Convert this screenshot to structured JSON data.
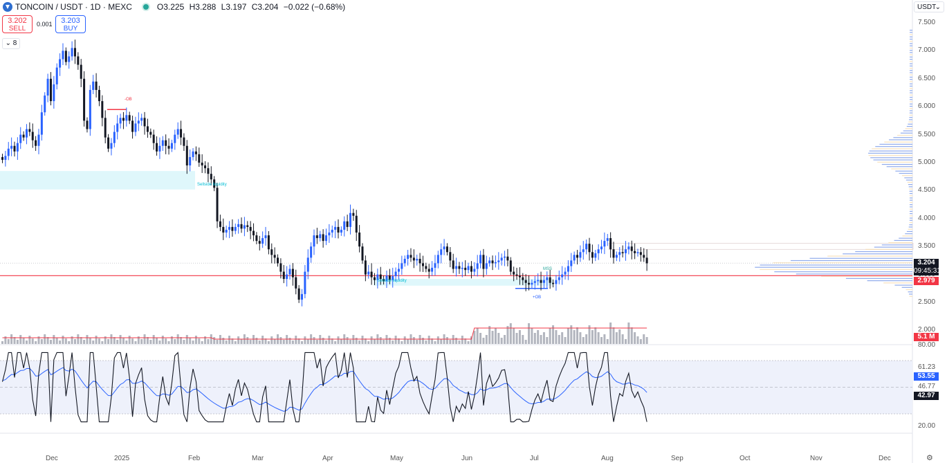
{
  "header": {
    "symbol": "TONCOIN / USDT · 1D · MEXC",
    "open": "O3.225",
    "high": "H3.288",
    "low": "L3.197",
    "close": "C3.204",
    "change": "−0.022 (−0.68%)"
  },
  "trade": {
    "sell_price": "3.202",
    "sell_label": "SELL",
    "spread": "0.001",
    "buy_price": "3.203",
    "buy_label": "BUY"
  },
  "indicators_count": "8",
  "currency": "USDT",
  "colors": {
    "up": "#2962ff",
    "down": "#131722",
    "accent": "#f23645",
    "ema": "#2962ff",
    "rsi": "#131722"
  },
  "price_labels": {
    "last_price": "3.204",
    "countdown": "09:45:31",
    "level": "2.979",
    "volume": "5.1 M",
    "rsi_ma": "53.55",
    "rsi": "42.97"
  },
  "annotations": {
    "ob_bear": "-OB",
    "sell_liquidity": "Sellside liquidity",
    "sell_liquidity_2": "Sellside liquidity",
    "ob_bull": "+OB",
    "mss": "MSS"
  },
  "chart_data": {
    "type": "candlestick",
    "symbol": "TONCOIN / USDT",
    "interval": "1D",
    "exchange": "MEXC",
    "price_axis": {
      "ticks": [
        "7.500",
        "7.000",
        "6.500",
        "6.000",
        "5.500",
        "5.000",
        "4.500",
        "4.000",
        "3.500",
        "3.000",
        "2.500",
        "2.000"
      ],
      "range": [
        1.9,
        7.75
      ]
    },
    "time_axis": {
      "ticks": [
        "Dec",
        "2025",
        "Feb",
        "Mar",
        "Apr",
        "May",
        "Jun",
        "Jul",
        "Aug",
        "Sep",
        "Oct",
        "Nov",
        "Dec"
      ]
    },
    "closes": [
      5.05,
      5.12,
      5.25,
      5.3,
      5.2,
      5.35,
      5.5,
      5.45,
      5.6,
      5.55,
      5.4,
      5.3,
      5.5,
      5.9,
      6.2,
      6.5,
      6.1,
      6.4,
      6.7,
      6.85,
      7.0,
      6.8,
      6.9,
      7.05,
      6.9,
      6.75,
      6.5,
      5.75,
      5.6,
      6.3,
      6.45,
      6.3,
      6.1,
      5.8,
      5.45,
      5.25,
      5.35,
      5.55,
      5.7,
      5.8,
      5.75,
      5.85,
      5.75,
      5.55,
      5.7,
      5.75,
      5.8,
      5.65,
      5.55,
      5.5,
      5.35,
      5.2,
      5.3,
      5.4,
      5.3,
      5.25,
      5.35,
      5.5,
      5.6,
      5.45,
      5.3,
      4.95,
      5.1,
      5.2,
      5.15,
      5.0,
      4.95,
      4.9,
      4.8,
      4.7,
      4.55,
      3.95,
      3.85,
      3.75,
      3.8,
      3.85,
      3.78,
      3.85,
      3.9,
      3.82,
      3.88,
      3.85,
      3.78,
      3.7,
      3.6,
      3.55,
      3.65,
      3.7,
      3.45,
      3.35,
      3.3,
      3.2,
      3.05,
      2.92,
      3.0,
      3.1,
      2.95,
      2.75,
      2.55,
      2.65,
      3.05,
      3.3,
      3.5,
      3.7,
      3.65,
      3.72,
      3.6,
      3.7,
      3.75,
      3.8,
      3.85,
      3.75,
      3.8,
      3.95,
      3.85,
      4.1,
      4.05,
      3.75,
      3.5,
      3.25,
      3.0,
      3.05,
      2.95,
      2.9,
      3.0,
      2.92,
      2.88,
      2.98,
      2.9,
      2.97,
      3.05,
      3.1,
      3.2,
      3.28,
      3.35,
      3.3,
      3.25,
      3.28,
      3.2,
      3.15,
      3.1,
      3.05,
      3.12,
      3.2,
      3.35,
      3.45,
      3.5,
      3.4,
      3.25,
      3.1,
      3.15,
      3.1,
      3.12,
      3.08,
      3.15,
      3.05,
      3.1,
      3.2,
      3.35,
      3.1,
      3.2,
      3.25,
      3.2,
      3.22,
      3.25,
      3.3,
      3.32,
      3.25,
      3.05,
      3.0,
      2.98,
      2.95,
      2.9,
      2.85,
      2.82,
      2.85,
      2.88,
      2.9,
      2.85,
      2.9,
      2.95,
      2.85,
      2.83,
      2.9,
      2.95,
      3.0,
      3.05,
      3.15,
      3.25,
      3.35,
      3.3,
      3.4,
      3.45,
      3.55,
      3.4,
      3.3,
      3.38,
      3.45,
      3.5,
      3.6,
      3.65,
      3.45,
      3.3,
      3.35,
      3.4,
      3.38,
      3.45,
      3.5,
      3.42,
      3.38,
      3.4,
      3.35,
      3.3,
      3.2
    ],
    "ema_note": "moving average overlay",
    "rsi": {
      "upper": 70,
      "lower": 30,
      "mid": 50,
      "labels": [
        "80.00",
        "61.23",
        "46.77",
        "20.00"
      ],
      "last": 42.97,
      "ma_last": 53.55
    },
    "key_level": 2.979,
    "last_price": 3.204
  }
}
